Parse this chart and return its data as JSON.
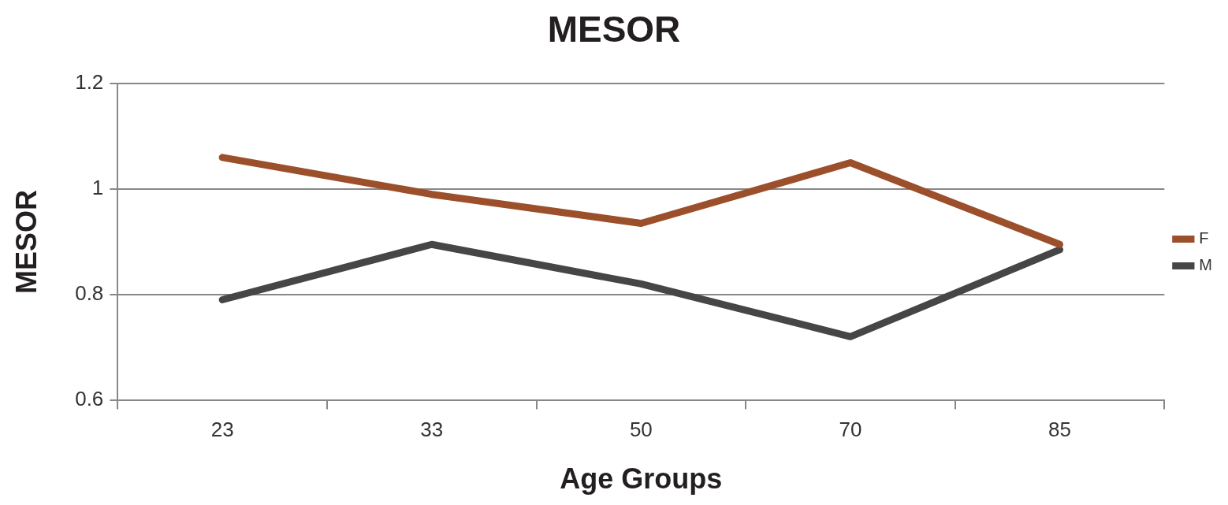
{
  "chart_data": {
    "type": "line",
    "title": "MESOR",
    "xlabel": "Age Groups",
    "ylabel": "MESOR",
    "categories": [
      "23",
      "33",
      "50",
      "70",
      "85"
    ],
    "series": [
      {
        "name": "F",
        "color": "#9c4f2b",
        "values": [
          1.06,
          0.99,
          0.935,
          1.05,
          0.895
        ]
      },
      {
        "name": "M",
        "color": "#464646",
        "values": [
          0.79,
          0.895,
          0.82,
          0.72,
          0.885
        ]
      }
    ],
    "ylim": [
      0.6,
      1.2
    ],
    "yticks": [
      0.6,
      0.8,
      1,
      1.2
    ],
    "grid": "y",
    "legend": "right",
    "marker": "none",
    "line_style": "solid"
  }
}
